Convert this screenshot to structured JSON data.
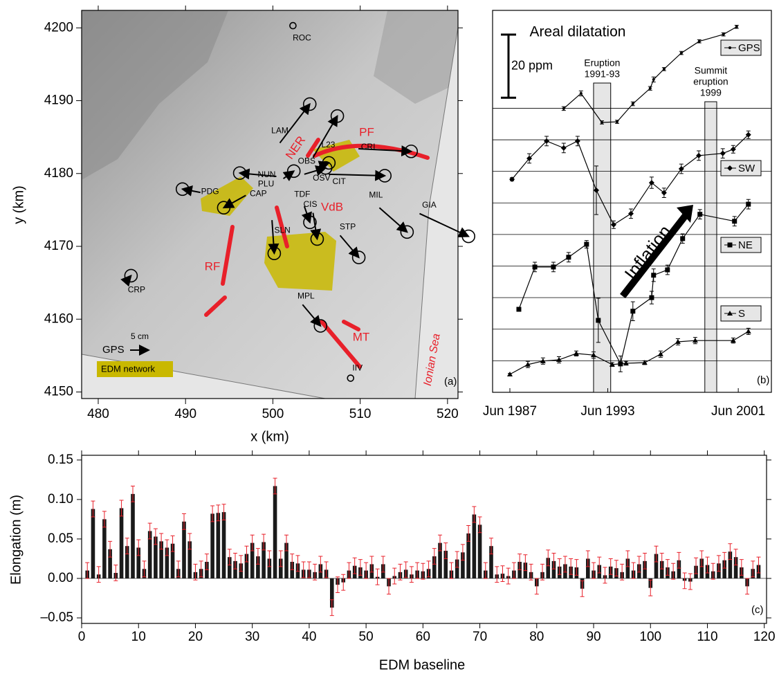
{
  "chart_data": [
    {
      "type": "map",
      "panel_label": "(a)",
      "xlabel": "x  (km)",
      "ylabel": "y  (km)",
      "xlim": [
        478.1,
        521.2
      ],
      "ylim": [
        4149.1,
        4202.4
      ],
      "xticks": [
        480,
        490,
        500,
        510,
        520
      ],
      "yticks": [
        4150,
        4160,
        4170,
        4180,
        4190,
        4200
      ],
      "stations": [
        {
          "name": "ROC",
          "x": 502.3,
          "y": 4200.3,
          "east": null,
          "north": null
        },
        {
          "name": "LAM",
          "x": 500.8,
          "y": 4184.2,
          "east": 8.0,
          "north": 10.4
        },
        {
          "name": "L23",
          "x": 504.6,
          "y": 4182.2,
          "east": 6.5,
          "north": 11.1
        },
        {
          "name": "CRI",
          "x": 509.8,
          "y": 4183.4,
          "east": 14.1,
          "north": -0.7
        },
        {
          "name": "NUN",
          "x": 500.4,
          "y": 4179.6,
          "east": -9.8,
          "north": 0.9
        },
        {
          "name": "PLU",
          "x": 501.2,
          "y": 4179.3,
          "east": 2.8,
          "north": 2.0
        },
        {
          "name": "OBS",
          "x": 505.3,
          "y": 4181.0,
          "east": 2.6,
          "north": 0.9
        },
        {
          "name": "OSV",
          "x": 503.6,
          "y": 4179.9,
          "east": 5.7,
          "north": 1.7
        },
        {
          "name": "CIT",
          "x": 506.4,
          "y": 4179.9,
          "east": 15.0,
          "north": -0.4
        },
        {
          "name": "PDG",
          "x": 491.7,
          "y": 4177.4,
          "east": -4.8,
          "north": 0.9
        },
        {
          "name": "CAP",
          "x": 496.9,
          "y": 4177.0,
          "east": -5.9,
          "north": -3.3
        },
        {
          "name": "TDF",
          "x": 503.6,
          "y": 4175.5,
          "east": 1.5,
          "north": -4.3
        },
        {
          "name": "CIS",
          "x": 504.6,
          "y": 4174.6,
          "east": 1.1,
          "north": -7.0
        },
        {
          "name": "MIL",
          "x": 512.2,
          "y": 4175.3,
          "east": 7.4,
          "north": -6.5
        },
        {
          "name": "GIA",
          "x": 516.8,
          "y": 4174.5,
          "east": 13.1,
          "north": -6.1
        },
        {
          "name": "SLN",
          "x": 499.9,
          "y": 4173.6,
          "east": 0.6,
          "north": -8.9
        },
        {
          "name": "STP",
          "x": 507.7,
          "y": 4171.5,
          "east": 5.0,
          "north": -5.9
        },
        {
          "name": "CRP",
          "x": 483.2,
          "y": 4165.2,
          "east": 1.3,
          "north": 1.5
        },
        {
          "name": "MPL",
          "x": 503.4,
          "y": 4162.0,
          "east": 4.8,
          "north": -5.7
        },
        {
          "name": "IIV",
          "x": 508.9,
          "y": 4151.9,
          "east": null,
          "north": null
        }
      ],
      "gps_scale": {
        "name": "GPS",
        "value": 5,
        "label": "5 cm"
      },
      "edm_label": "EDM network",
      "fault_labels": [
        "PF",
        "NER",
        "VdB",
        "RF",
        "MT"
      ],
      "sea_label": "Ionian Sea",
      "color": "#000000",
      "fault_color": "#e8202a",
      "edm_color": "#c9b800"
    },
    {
      "type": "line",
      "title": "Areal dilatation",
      "panel_label": "(b)",
      "xlim": [
        1986.36,
        2003.45
      ],
      "xticks": [
        {
          "value": 1987.42,
          "label": "Jun 1987"
        },
        {
          "value": 1993.42,
          "label": "Jun 1993"
        },
        {
          "value": 2001.42,
          "label": "Jun 2001"
        }
      ],
      "ylim": [
        0,
        121
      ],
      "hlines": [
        10,
        20,
        30,
        40,
        50,
        60,
        70,
        80,
        90
      ],
      "scale_bar": {
        "value": 20,
        "label": "20 ppm"
      },
      "bands": [
        {
          "label": [
            "Eruption",
            "1991-93"
          ],
          "start": 1992.55,
          "end": 1993.6
        },
        {
          "label": [
            "Summit",
            "eruption",
            "1999"
          ],
          "start": 1999.37,
          "end": 2000.1
        }
      ],
      "annotation": "Inflation",
      "series": [
        {
          "name": "GPS",
          "color": "#000000",
          "marker": "dot",
          "x": [
            1990.72,
            1991.78,
            1993.06,
            1993.99,
            1994.96,
            1996.02,
            1996.23,
            1996.87,
            1997.93,
            1999.03,
            2000.51,
            2001.32
          ],
          "values": [
            89.9,
            94.7,
            85.5,
            85.7,
            91.4,
            96.3,
            99.1,
            102.4,
            107.5,
            111.2,
            113.4,
            115.8
          ],
          "errors": [
            0.6,
            0.8,
            0.5,
            0.5,
            0.6,
            0.6,
            0.8,
            0.5,
            0.5,
            0.5,
            0.5,
            0.5
          ]
        },
        {
          "name": "SW",
          "color": "#000000",
          "marker": "diamond",
          "x": [
            1987.55,
            1988.61,
            1989.67,
            1990.72,
            1991.57,
            1992.72,
            1993.78,
            1994.84,
            1996.11,
            1996.87,
            1997.93,
            1999.0,
            2000.47,
            2001.11,
            2002.04
          ],
          "values": [
            67.5,
            74.1,
            79.6,
            77.4,
            79.6,
            64.0,
            53.1,
            56.6,
            66.4,
            63.2,
            70.8,
            75.0,
            75.7,
            77.0,
            81.6
          ],
          "errors": [
            0.5,
            1.5,
            1.5,
            1.5,
            1.5,
            7.7,
            1.2,
            1.5,
            1.8,
            1.5,
            1.5,
            1.5,
            1.5,
            1.2,
            1.2
          ]
        },
        {
          "name": "NE",
          "color": "#000000",
          "marker": "square",
          "x": [
            1987.97,
            1988.95,
            1990.09,
            1991.02,
            1992.12,
            1992.84,
            1994.2,
            1994.96,
            1996.11,
            1996.23,
            1997.08,
            1998.01,
            1999.07,
            2001.19,
            2002.04
          ],
          "values": [
            26.3,
            39.7,
            39.7,
            42.8,
            46.9,
            22.8,
            9.0,
            25.7,
            30.0,
            37.1,
            38.8,
            48.7,
            56.4,
            54.2,
            59.6
          ],
          "errors": [
            0.5,
            1.5,
            1.5,
            1.5,
            1.2,
            7.0,
            2.5,
            3.0,
            2.0,
            2.0,
            1.5,
            1.5,
            1.5,
            1.5,
            1.5
          ]
        },
        {
          "name": "S",
          "color": "#000000",
          "marker": "triangle",
          "x": [
            1987.42,
            1988.52,
            1989.45,
            1990.43,
            1991.49,
            1992.55,
            1993.69,
            1994.54,
            1995.68,
            1996.66,
            1997.72,
            1998.78,
            2001.11,
            2002.04
          ],
          "values": [
            5.7,
            8.8,
            9.9,
            10.3,
            12.3,
            11.8,
            8.8,
            9.2,
            9.4,
            12.1,
            16.0,
            16.4,
            16.4,
            19.3
          ],
          "errors": [
            0.3,
            1.0,
            1.0,
            1.0,
            0.8,
            1.0,
            0.6,
            0.6,
            0.6,
            1.0,
            1.0,
            1.0,
            0.8,
            1.0
          ]
        }
      ]
    },
    {
      "type": "bar",
      "panel_label": "(c)",
      "xlabel": "EDM baseline",
      "ylabel": "Elongation (m)",
      "xlim": [
        0,
        120.4
      ],
      "ylim": [
        -0.057,
        0.156
      ],
      "xticks": [
        0,
        10,
        20,
        30,
        40,
        50,
        60,
        70,
        80,
        90,
        100,
        110,
        120
      ],
      "yticks": [
        {
          "value": -0.05,
          "label": "–0.05"
        },
        {
          "value": 0,
          "label": "0.00"
        },
        0.05,
        {
          "value": 0.1,
          "label": "0.10"
        },
        0.15
      ],
      "color": "#1a1a1a",
      "error_color": "#e8202a",
      "error": 0.01,
      "x": [
        1,
        2,
        3,
        4,
        5,
        6,
        7,
        8,
        9,
        10,
        11,
        12,
        13,
        14,
        15,
        16,
        17,
        18,
        19,
        20,
        21,
        22,
        23,
        24,
        25,
        26,
        27,
        28,
        29,
        30,
        31,
        32,
        33,
        34,
        35,
        36,
        37,
        38,
        39,
        40,
        41,
        42,
        43,
        44,
        45,
        46,
        47,
        48,
        49,
        50,
        51,
        52,
        53,
        54,
        55,
        56,
        57,
        58,
        59,
        60,
        61,
        62,
        63,
        64,
        65,
        66,
        67,
        68,
        69,
        70,
        71,
        72,
        73,
        74,
        75,
        76,
        77,
        78,
        79,
        80,
        81,
        82,
        83,
        84,
        85,
        86,
        87,
        88,
        89,
        90,
        91,
        92,
        93,
        94,
        95,
        96,
        97,
        98,
        99,
        100,
        101,
        102,
        103,
        104,
        105,
        106,
        107,
        108,
        109,
        110,
        111,
        112,
        113,
        114,
        115,
        116,
        117,
        118,
        119
      ],
      "values": [
        0.01,
        0.088,
        0.005,
        0.075,
        0.037,
        0.007,
        0.089,
        0.041,
        0.107,
        0.039,
        0.012,
        0.06,
        0.053,
        0.047,
        0.039,
        0.044,
        0.012,
        0.072,
        0.047,
        0.008,
        0.012,
        0.021,
        0.082,
        0.083,
        0.084,
        0.027,
        0.022,
        0.019,
        0.031,
        0.045,
        0.028,
        0.046,
        0.025,
        0.117,
        0.025,
        0.045,
        0.021,
        0.019,
        0.011,
        0.011,
        0.008,
        0.018,
        0.011,
        -0.037,
        -0.008,
        -0.005,
        0.01,
        0.016,
        0.014,
        0.01,
        0.018,
        0.002,
        0.018,
        -0.01,
        0.003,
        0.008,
        0.011,
        0.005,
        0.01,
        0.009,
        0.012,
        0.028,
        0.045,
        0.035,
        0.01,
        0.024,
        0.033,
        0.057,
        0.081,
        0.068,
        0.01,
        0.041,
        0.005,
        0.006,
        0.003,
        0.01,
        0.021,
        0.02,
        0.008,
        -0.01,
        0.008,
        0.026,
        0.022,
        0.015,
        0.018,
        0.015,
        0.014,
        -0.013,
        0.025,
        0.01,
        0.017,
        0.004,
        0.015,
        0.013,
        0.008,
        0.025,
        0.01,
        0.018,
        0.022,
        -0.012,
        0.031,
        0.022,
        0.014,
        0.009,
        0.023,
        -0.003,
        -0.004,
        0.016,
        0.025,
        0.017,
        0.009,
        0.019,
        0.023,
        0.034,
        0.027,
        0.014,
        -0.01,
        0.012,
        0.017
      ]
    }
  ]
}
